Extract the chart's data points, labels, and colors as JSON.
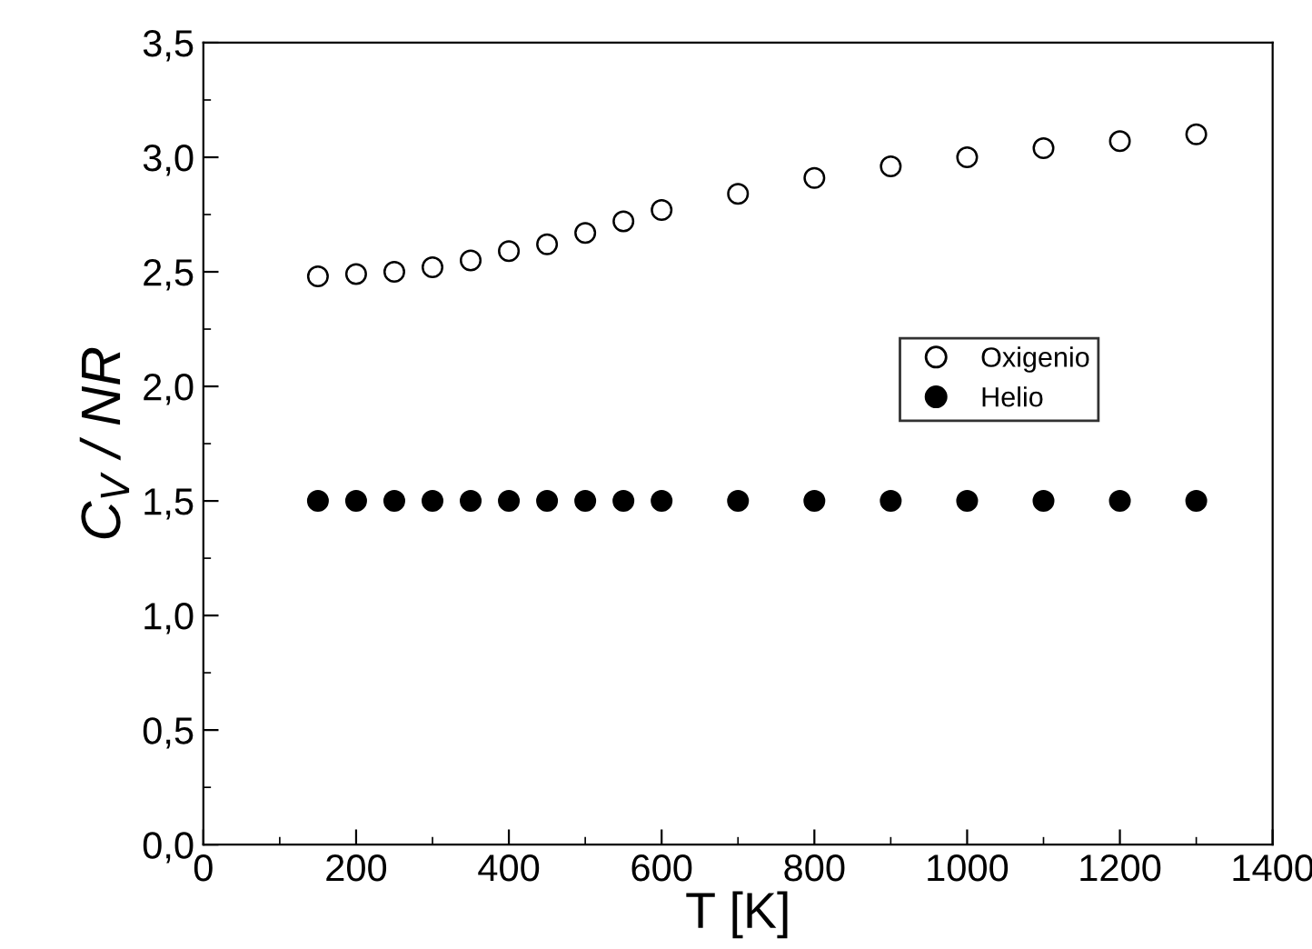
{
  "chart_data": {
    "type": "scatter",
    "xlabel": "T [K]",
    "ylabel": "C$_{V}$ / NR",
    "xlim": [
      0,
      1400
    ],
    "xticks": [
      0,
      200,
      400,
      600,
      800,
      1000,
      1200,
      1400
    ],
    "ylim": [
      0,
      3.5
    ],
    "yticks": [
      {
        "value": 0,
        "label": "0,0"
      },
      {
        "value": 0.5,
        "label": "0,5"
      },
      {
        "value": 1,
        "label": "1,0"
      },
      {
        "value": 1.5,
        "label": "1,5"
      },
      {
        "value": 2,
        "label": "2,0"
      },
      {
        "value": 2.5,
        "label": "2,5"
      },
      {
        "value": 3,
        "label": "3,0"
      },
      {
        "value": 3.5,
        "label": "3,5"
      }
    ],
    "x": [
      150,
      200,
      250,
      300,
      350,
      400,
      450,
      500,
      550,
      600,
      700,
      800,
      900,
      1000,
      1100,
      1200,
      1300
    ],
    "series": [
      {
        "name": "Oxigenio",
        "color": "#ffffff",
        "values": [
          2.48,
          2.49,
          2.5,
          2.52,
          2.55,
          2.59,
          2.62,
          2.67,
          2.72,
          2.77,
          2.84,
          2.91,
          2.96,
          3.0,
          3.04,
          3.07,
          3.1
        ]
      },
      {
        "name": "Helio",
        "color": "#000000",
        "values": [
          1.5,
          1.5,
          1.5,
          1.5,
          1.5,
          1.5,
          1.5,
          1.5,
          1.5,
          1.5,
          1.5,
          1.5,
          1.5,
          1.5,
          1.5,
          1.5,
          1.5
        ]
      }
    ],
    "marker": "circle",
    "legend": "right",
    "grid": false
  }
}
